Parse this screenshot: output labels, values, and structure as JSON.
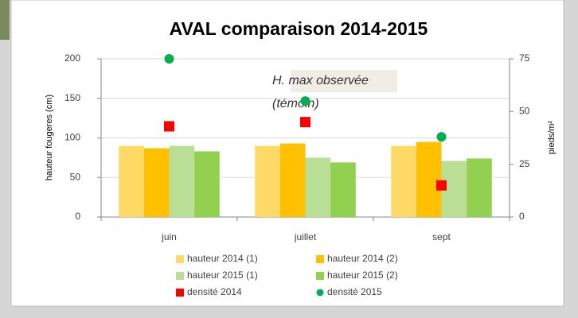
{
  "chart_data": {
    "type": "bar",
    "title": "AVAL comparaison 2014-2015",
    "ylabel": "hauteur fougeres (cm)",
    "y2label": "pieds/m²",
    "annotation": [
      "H. max observée",
      "(témoin)"
    ],
    "categories": [
      "juin",
      "juillet",
      "sept"
    ],
    "ylim": [
      0,
      200
    ],
    "yticks": [
      0,
      50,
      100,
      150,
      200
    ],
    "y2lim": [
      0,
      75
    ],
    "y2ticks": [
      0,
      25,
      50,
      75
    ],
    "grid": true,
    "series": [
      {
        "name": "hauteur 2014 (1)",
        "color": "#ffd966",
        "values": [
          90,
          90,
          90
        ]
      },
      {
        "name": "hauteur 2014 (2)",
        "color": "#ffc000",
        "values": [
          87,
          93,
          95
        ]
      },
      {
        "name": "hauteur 2015 (1)",
        "color": "#b9de95",
        "values": [
          90,
          75,
          71
        ]
      },
      {
        "name": "hauteur 2015 (2)",
        "color": "#92d050",
        "values": [
          83,
          69,
          74
        ]
      },
      {
        "name": "densité 2014",
        "color": "#ff0000",
        "axis": "y2",
        "marker": "square",
        "values": [
          43,
          45,
          15
        ]
      },
      {
        "name": "densité 2015",
        "color": "#00b050",
        "axis": "y2",
        "marker": "circle",
        "values": [
          75,
          55,
          38
        ]
      }
    ]
  }
}
